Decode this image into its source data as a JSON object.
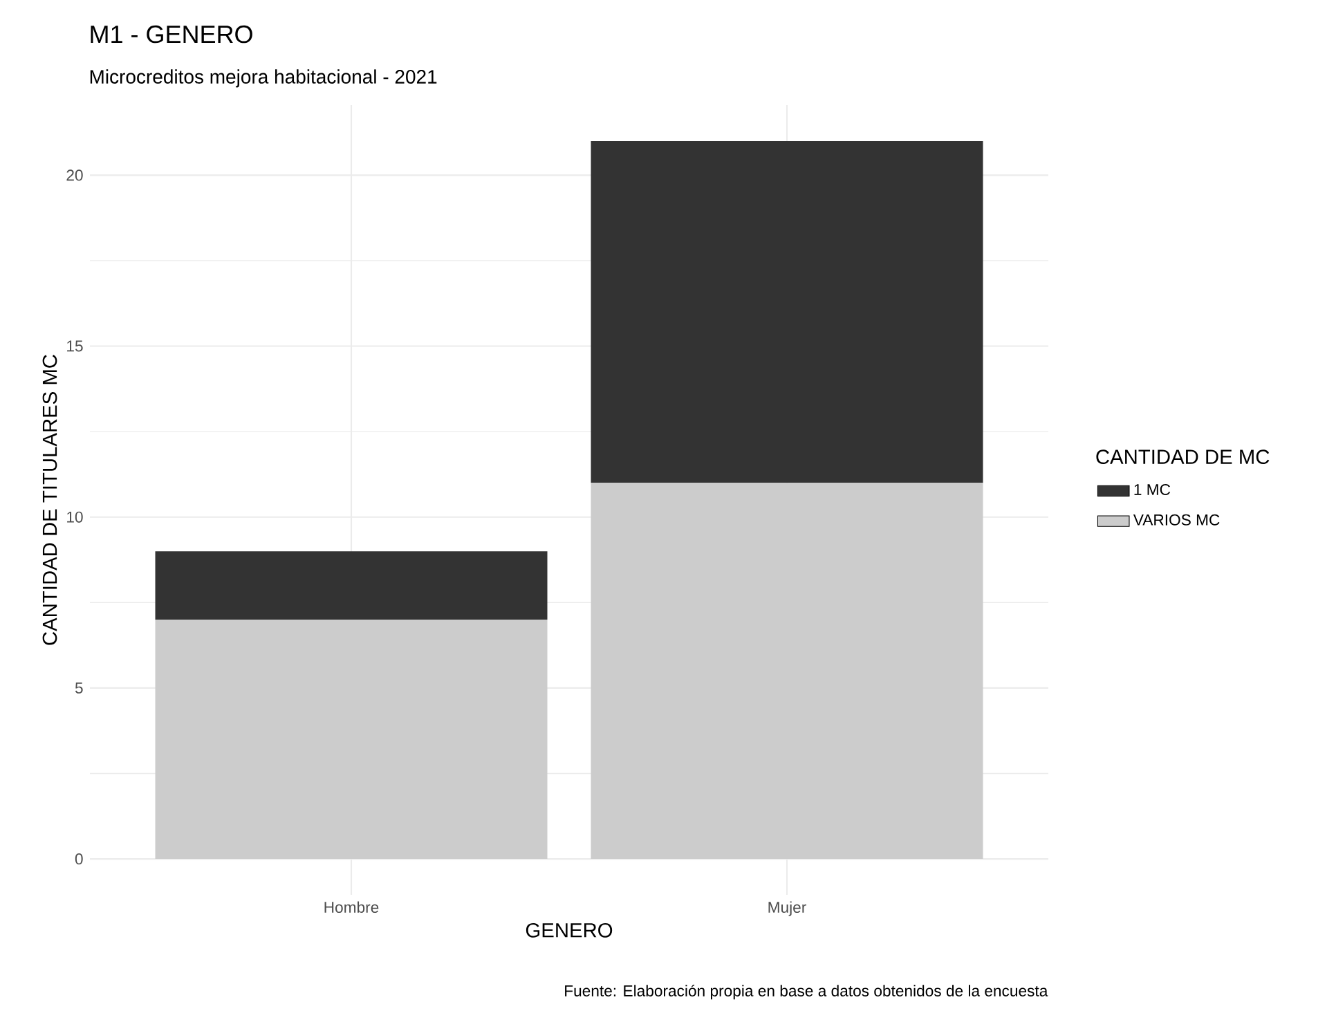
{
  "chart_data": {
    "type": "bar",
    "title": "M1 - GENERO",
    "subtitle": "Microcreditos mejora habitacional - 2021",
    "xlabel": "GENERO",
    "ylabel": "CANTIDAD DE TITULARES MC",
    "legend_title": "CANTIDAD DE MC",
    "categories": [
      "Hombre",
      "Mujer"
    ],
    "stacked": true,
    "series": [
      {
        "name": "VARIOS MC",
        "color": "#cccccc",
        "values": [
          7,
          11
        ]
      },
      {
        "name": "1 MC",
        "color": "#333333",
        "values": [
          2,
          10
        ]
      }
    ],
    "ylim": [
      -1.05,
      22.05
    ],
    "yticks": [
      0,
      5,
      10,
      15,
      20
    ],
    "grid": true,
    "legend": "right",
    "annotations": [
      "Fuente: Elaboración propia en base a datos obtenidos de la encuesta"
    ]
  }
}
